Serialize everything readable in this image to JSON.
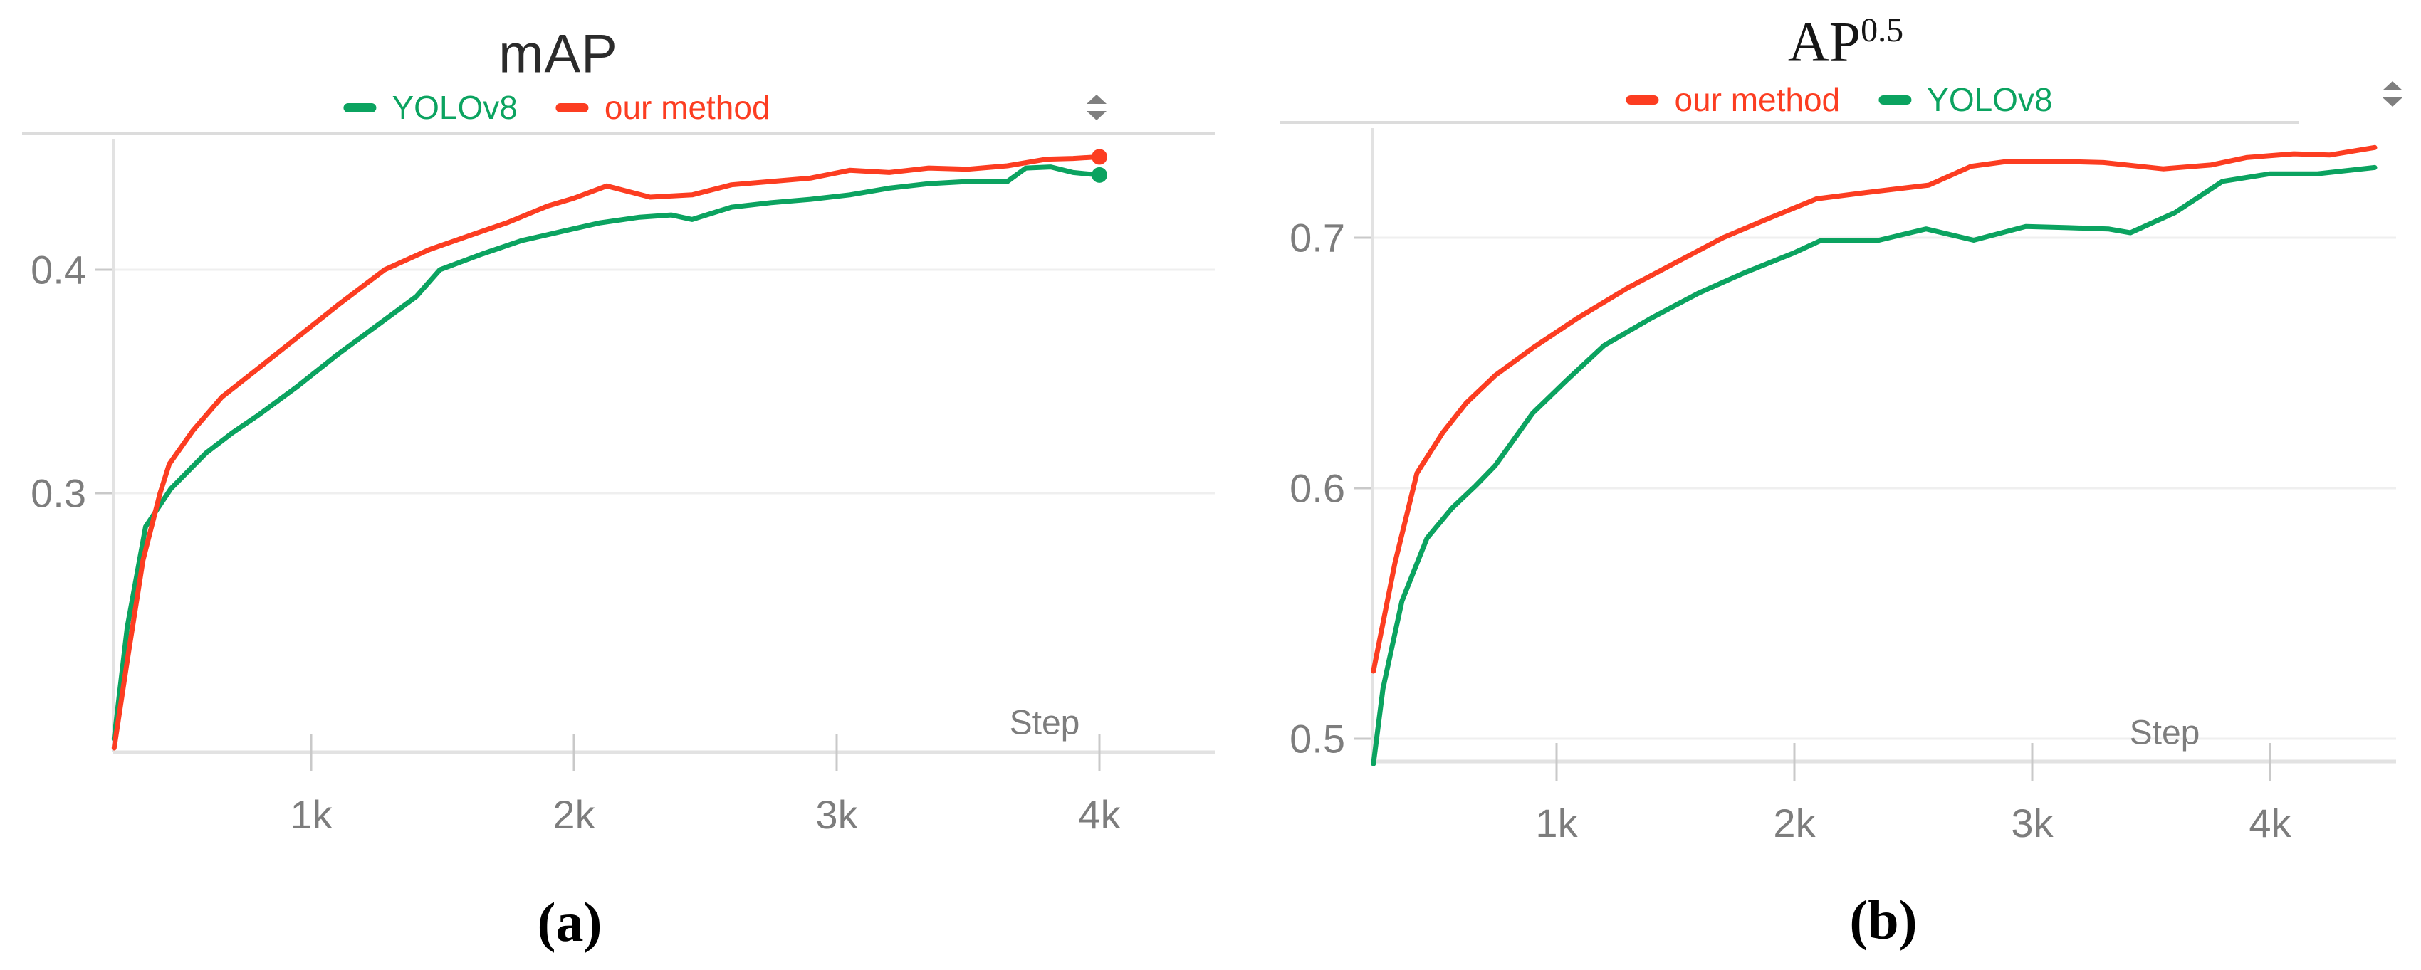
{
  "page": {
    "background": "#ffffff"
  },
  "colors": {
    "our_method": "#fc3d21",
    "yolov8": "#0ba360",
    "title": "#2b2b2b",
    "tick_text": "#7d7d7d",
    "grid": "#efefef",
    "axis": "#e2e2e2",
    "top_border": "#dcdcdc",
    "tick_stub": "#c9c9c9",
    "icon": "#7f7f7f"
  },
  "ui": {
    "icons": [
      {
        "name": "up-down-arrows-icon",
        "chart": "a",
        "glyph": "two stacked triangles"
      },
      {
        "name": "up-down-arrows-icon",
        "chart": "b",
        "glyph": "two stacked triangles"
      }
    ]
  },
  "chart_data": [
    {
      "type": "line",
      "id": "a",
      "title": "mAP",
      "title_sup": "",
      "caption": "(a)",
      "xlabel": "Step",
      "grid": true,
      "legend_position": "top center",
      "legend_order": [
        "YOLOv8",
        "our method"
      ],
      "x_ticks": [
        {
          "value": 1000,
          "label": "1k"
        },
        {
          "value": 2000,
          "label": "2k"
        },
        {
          "value": 3000,
          "label": "3k"
        },
        {
          "value": 4000,
          "label": "4k"
        }
      ],
      "y_ticks": [
        {
          "value": 0.4,
          "label": "0.4"
        },
        {
          "value": 0.3,
          "label": "0.3"
        }
      ],
      "xlim": [
        250,
        4000
      ],
      "ylim": [
        0.184,
        0.461
      ],
      "end_markers": true,
      "series": [
        {
          "name": "YOLOv8",
          "color_key": "yolov8",
          "steps": [
            250,
            300,
            370,
            466,
            600,
            700,
            800,
            950,
            1100,
            1250,
            1400,
            1490,
            1650,
            1800,
            1950,
            2100,
            2250,
            2370,
            2450,
            2600,
            2750,
            2900,
            3050,
            3200,
            3350,
            3500,
            3650,
            3720,
            3815,
            3900,
            4000
          ],
          "values": [
            0.19,
            0.24,
            0.285,
            0.302,
            0.318,
            0.327,
            0.335,
            0.348,
            0.362,
            0.375,
            0.388,
            0.4,
            0.407,
            0.413,
            0.417,
            0.421,
            0.4235,
            0.4245,
            0.4225,
            0.428,
            0.43,
            0.4315,
            0.4335,
            0.4365,
            0.4385,
            0.4395,
            0.4395,
            0.4455,
            0.446,
            0.4435,
            0.4424
          ]
        },
        {
          "name": "our method",
          "color_key": "our_method",
          "steps": [
            250,
            300,
            360,
            425,
            460,
            550,
            660,
            800,
            950,
            1100,
            1280,
            1450,
            1620,
            1745,
            1900,
            2000,
            2125,
            2290,
            2450,
            2600,
            2750,
            2900,
            3050,
            3200,
            3350,
            3500,
            3650,
            3800,
            3900,
            4000
          ],
          "values": [
            0.186,
            0.225,
            0.27,
            0.3,
            0.313,
            0.328,
            0.343,
            0.356,
            0.37,
            0.384,
            0.4,
            0.409,
            0.416,
            0.421,
            0.4285,
            0.432,
            0.4375,
            0.4325,
            0.4335,
            0.438,
            0.4395,
            0.441,
            0.4445,
            0.4435,
            0.4455,
            0.445,
            0.4465,
            0.4495,
            0.4498,
            0.4505
          ]
        }
      ]
    },
    {
      "type": "line",
      "id": "b",
      "title": "AP",
      "title_sup": "0.5",
      "caption": "(b)",
      "xlabel": "Step",
      "grid": true,
      "legend_position": "top center",
      "legend_order": [
        "our method",
        "YOLOv8"
      ],
      "x_ticks": [
        {
          "value": 1000,
          "label": "1k"
        },
        {
          "value": 2000,
          "label": "2k"
        },
        {
          "value": 3000,
          "label": "3k"
        },
        {
          "value": 4000,
          "label": "4k"
        }
      ],
      "y_ticks": [
        {
          "value": 0.7,
          "label": "0.7"
        },
        {
          "value": 0.6,
          "label": "0.6"
        },
        {
          "value": 0.5,
          "label": "0.5"
        }
      ],
      "xlim": [
        230,
        4440
      ],
      "ylim": [
        0.491,
        0.748
      ],
      "end_markers": false,
      "series": [
        {
          "name": "YOLOv8",
          "color_key": "yolov8",
          "steps": [
            230,
            270,
            350,
            455,
            560,
            660,
            742,
            900,
            1042,
            1200,
            1400,
            1600,
            1790,
            2000,
            2114,
            2356,
            2554,
            2754,
            2973,
            3150,
            3320,
            3413,
            3600,
            3800,
            4000,
            4200,
            4440
          ],
          "values": [
            0.49,
            0.52,
            0.555,
            0.58,
            0.592,
            0.601,
            0.609,
            0.63,
            0.643,
            0.657,
            0.668,
            0.678,
            0.686,
            0.694,
            0.699,
            0.699,
            0.7035,
            0.699,
            0.7045,
            0.704,
            0.7035,
            0.702,
            0.71,
            0.7225,
            0.7255,
            0.7255,
            0.728
          ]
        },
        {
          "name": "our method",
          "color_key": "our_method",
          "steps": [
            230,
            320,
            413,
            520,
            620,
            742,
            900,
            1090,
            1300,
            1500,
            1700,
            1900,
            2093,
            2300,
            2566,
            2743,
            2900,
            3100,
            3300,
            3550,
            3750,
            3900,
            4100,
            4250,
            4440
          ],
          "values": [
            0.527,
            0.57,
            0.606,
            0.622,
            0.634,
            0.645,
            0.656,
            0.668,
            0.68,
            0.69,
            0.7,
            0.708,
            0.7155,
            0.718,
            0.721,
            0.7285,
            0.7305,
            0.7305,
            0.73,
            0.7275,
            0.729,
            0.732,
            0.7335,
            0.733,
            0.736
          ]
        }
      ]
    }
  ]
}
